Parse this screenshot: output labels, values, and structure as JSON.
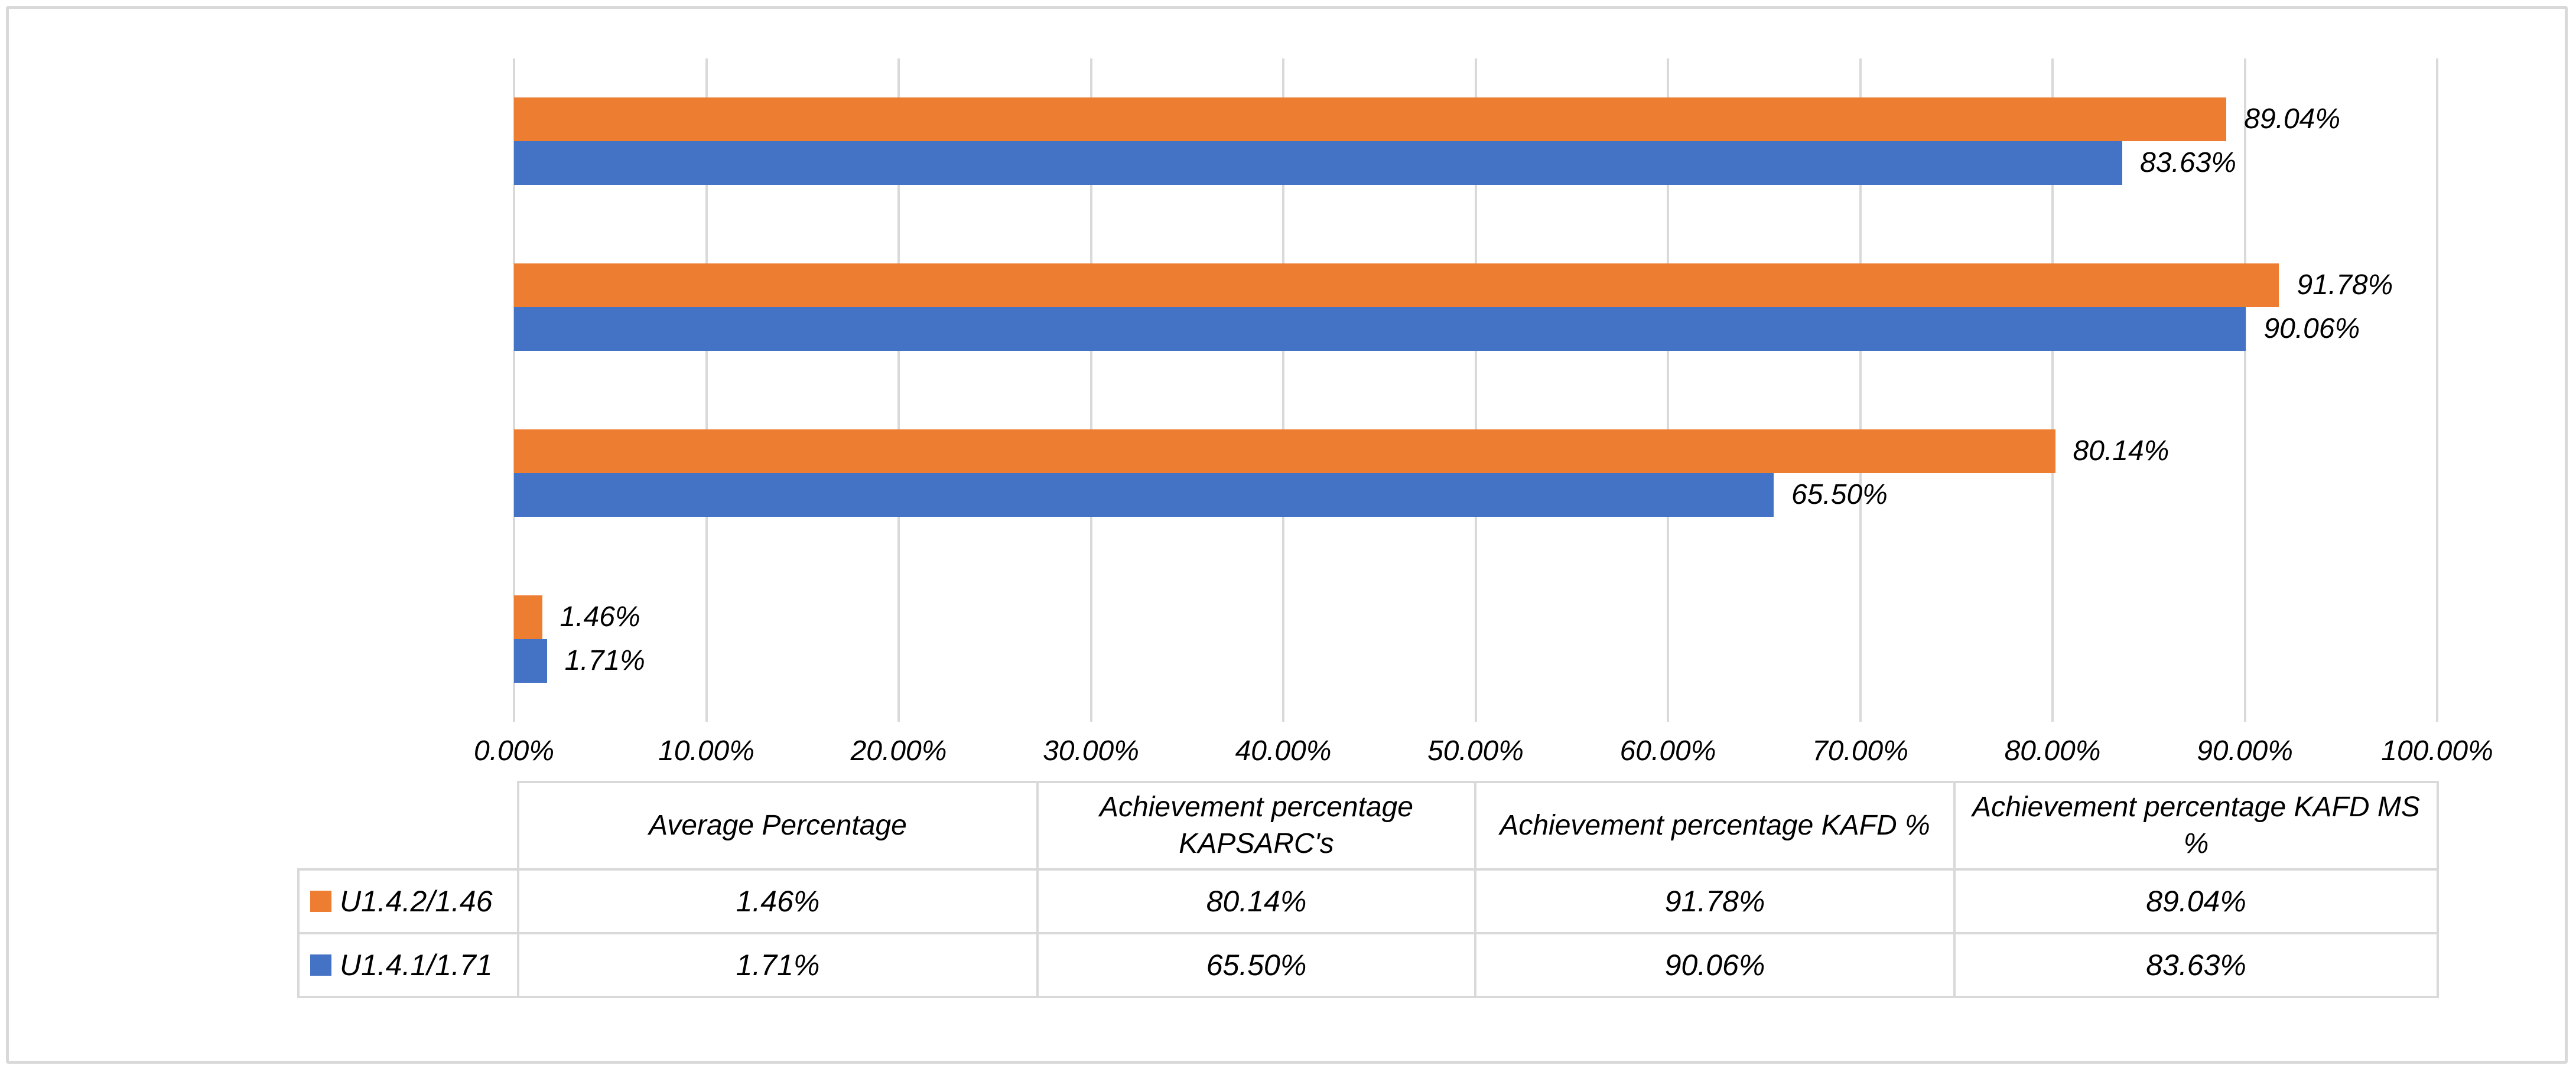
{
  "chart_data": {
    "type": "bar",
    "orientation": "horizontal",
    "title": "",
    "categories": [
      "Average Percentage",
      "Achievement percentage KAPSARC's",
      "Achievement percentage  KAFD %",
      "Achievement percentage KAFD MS %"
    ],
    "series": [
      {
        "name": "U1.4.2/1.46",
        "color": "#ED7D31",
        "values": [
          1.46,
          80.14,
          91.78,
          89.04
        ],
        "labels": [
          "1.46%",
          "80.14%",
          "91.78%",
          "89.04%"
        ]
      },
      {
        "name": "U1.4.1/1.71",
        "color": "#4472C4",
        "values": [
          1.71,
          65.5,
          90.06,
          83.63
        ],
        "labels": [
          "1.71%",
          "65.50%",
          "90.06%",
          "83.63%"
        ]
      }
    ],
    "xlim": [
      0,
      100
    ],
    "x_ticks": [
      {
        "value": 0,
        "label": "0.00%"
      },
      {
        "value": 10,
        "label": "10.00%"
      },
      {
        "value": 20,
        "label": "20.00%"
      },
      {
        "value": 30,
        "label": "30.00%"
      },
      {
        "value": 40,
        "label": "40.00%"
      },
      {
        "value": 50,
        "label": "50.00%"
      },
      {
        "value": 60,
        "label": "60.00%"
      },
      {
        "value": 70,
        "label": "70.00%"
      },
      {
        "value": 80,
        "label": "80.00%"
      },
      {
        "value": 90,
        "label": "90.00%"
      },
      {
        "value": 100,
        "label": "100.00%"
      }
    ],
    "grid": true,
    "legend_position": "table-rows-left",
    "category_display_order_top_to_bottom": [
      3,
      2,
      1,
      0
    ],
    "bar_order_in_group_top_to_bottom": [
      "U1.4.2/1.46",
      "U1.4.1/1.71"
    ]
  },
  "table": {
    "headers": [
      "Average Percentage",
      "Achievement percentage KAPSARC's",
      "Achievement percentage  KAFD %",
      "Achievement percentage KAFD MS %"
    ],
    "rows": [
      {
        "label": "U1.4.2/1.46",
        "swatch": "#ED7D31",
        "cells": [
          "1.46%",
          "80.14%",
          "91.78%",
          "89.04%"
        ]
      },
      {
        "label": "U1.4.1/1.71",
        "swatch": "#4472C4",
        "cells": [
          "1.71%",
          "65.50%",
          "90.06%",
          "83.63%"
        ]
      }
    ]
  },
  "colors": {
    "series_orange": "#ED7D31",
    "series_blue": "#4472C4",
    "gridline": "#D9D9D9",
    "table_border": "#D9D9D9",
    "frame_border": "#D9D9D9",
    "text": "#000000",
    "background": "#FFFFFF"
  }
}
